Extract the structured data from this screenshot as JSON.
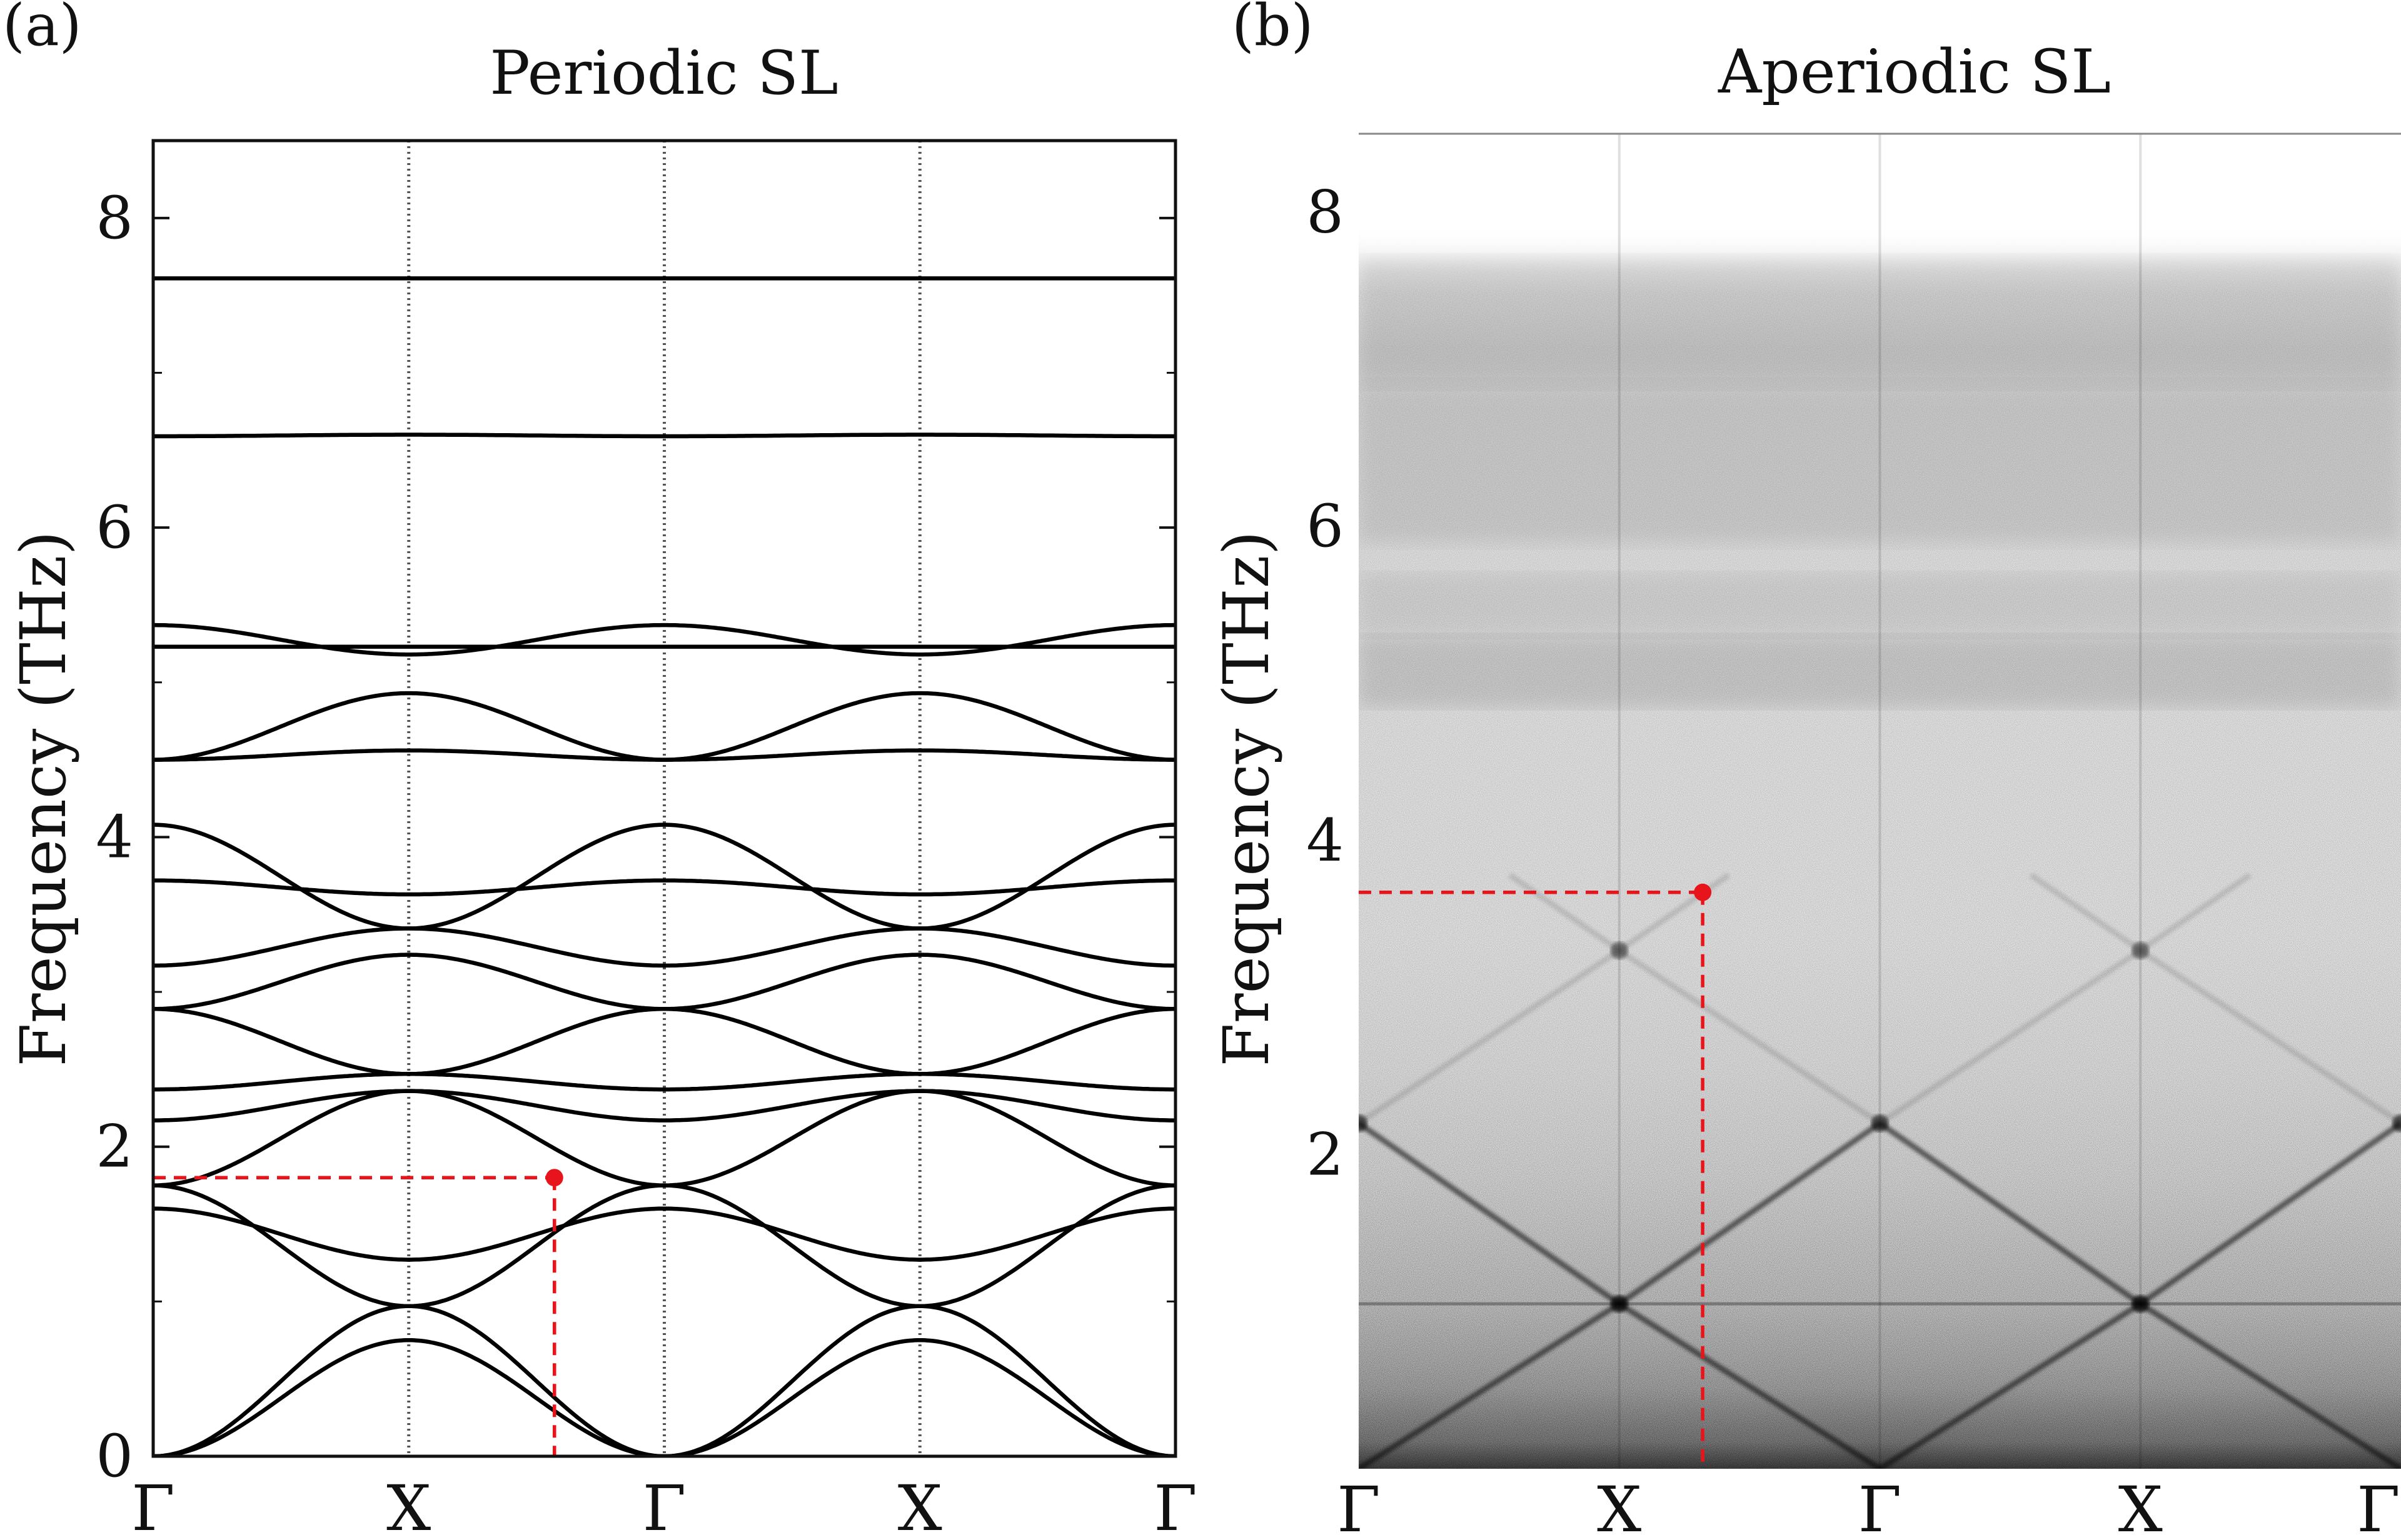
{
  "chart_data": [
    {
      "panel_label": "(a)",
      "type": "line",
      "title": "Periodic SL",
      "ylabel": "Frequency (THz)",
      "ylim": [
        0,
        8.5
      ],
      "yticks": [
        0,
        2,
        4,
        6,
        8
      ],
      "xlim": [
        0,
        4
      ],
      "xticks": [
        0,
        1,
        2,
        3,
        4
      ],
      "xticklabels": [
        "Γ",
        "X",
        "Γ",
        "X",
        "Γ"
      ],
      "vertical_guides_at": [
        1,
        2,
        3
      ],
      "series": [
        {
          "family": "cos",
          "a": 0.0,
          "b": 0.75
        },
        {
          "family": "cos",
          "a": 0.0,
          "b": 0.97
        },
        {
          "family": "cos",
          "a": 1.6,
          "b": 1.27
        },
        {
          "family": "cos",
          "a": 1.75,
          "b": 0.97
        },
        {
          "family": "cos",
          "a": 1.75,
          "b": 2.36
        },
        {
          "family": "cos",
          "a": 2.17,
          "b": 2.36
        },
        {
          "family": "cos",
          "a": 2.37,
          "b": 2.47
        },
        {
          "family": "cos",
          "a": 2.89,
          "b": 2.47
        },
        {
          "family": "cos",
          "a": 2.89,
          "b": 3.24
        },
        {
          "family": "cos",
          "a": 3.17,
          "b": 3.41
        },
        {
          "family": "cos",
          "a": 3.72,
          "b": 3.63
        },
        {
          "family": "cos",
          "a": 4.08,
          "b": 3.41
        },
        {
          "family": "cos",
          "a": 4.5,
          "b": 4.56
        },
        {
          "family": "cos",
          "a": 4.5,
          "b": 4.93
        },
        {
          "family": "cos",
          "a": 5.23,
          "b": 5.23
        },
        {
          "family": "cos",
          "a": 5.37,
          "b": 5.18
        },
        {
          "family": "cos",
          "a": 6.59,
          "b": 6.6
        },
        {
          "family": "cos",
          "a": 7.61,
          "b": 7.61
        }
      ],
      "marker": {
        "x": 1.57,
        "y": 1.8,
        "color": "#e8141b"
      }
    },
    {
      "panel_label": "(b)",
      "type": "heatmap",
      "title": "Aperiodic SL",
      "ylabel": "Frequency (THz)",
      "ylim": [
        0,
        8.5
      ],
      "yticks": [
        2,
        4,
        6,
        8
      ],
      "xlim": [
        0,
        4
      ],
      "xticks": [
        0,
        1,
        2,
        3,
        4
      ],
      "xticklabels": [
        "Γ",
        "X",
        "Γ",
        "X",
        "Γ"
      ],
      "colormap": "grayscale (white to black)",
      "diffuse_spectral_density_up_to": 7.7,
      "acoustic_branch_crossings": [
        {
          "x": 0,
          "y": 2.2
        },
        {
          "x": 1,
          "y": 1.05
        },
        {
          "x": 1,
          "y": 3.3
        },
        {
          "x": 2,
          "y": 2.2
        },
        {
          "x": 3,
          "y": 1.05
        },
        {
          "x": 3,
          "y": 3.3
        },
        {
          "x": 4,
          "y": 2.2
        }
      ],
      "marker": {
        "x": 1.32,
        "y": 3.67,
        "color": "#e8141b"
      }
    }
  ],
  "colors": {
    "line": "#000000",
    "marker": "#e8141b",
    "guide": "#555555"
  }
}
